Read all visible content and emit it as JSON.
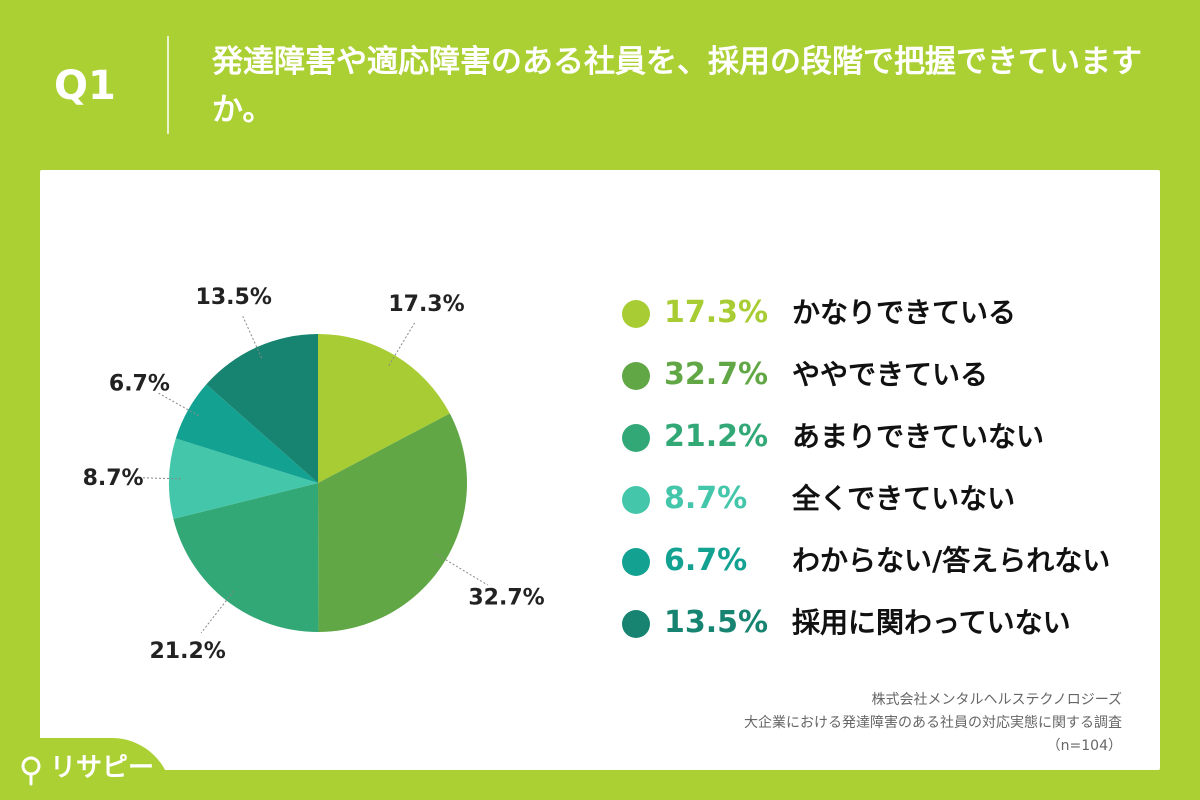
{
  "header": {
    "q_label": "Q1",
    "question": "発達障害や適応障害のある社員を、採用の段階で把握できていますか。"
  },
  "chart_data": {
    "type": "pie",
    "categories": [
      "かなりできている",
      "ややできている",
      "あまりできていない",
      "全くできていない",
      "わからない/答えられない",
      "採用に関わっていない"
    ],
    "values": [
      17.3,
      32.7,
      21.2,
      8.7,
      6.7,
      13.5
    ],
    "value_labels": [
      "17.3%",
      "32.7%",
      "21.2%",
      "8.7%",
      "6.7%",
      "13.5%"
    ],
    "colors": [
      "#a8cc33",
      "#61a745",
      "#33a877",
      "#43c6aa",
      "#13a292",
      "#168470"
    ],
    "legend_position": "right",
    "start_angle": "12 o'clock, clockwise"
  },
  "legend": [
    {
      "pct": "17.3%",
      "label": "かなりできている",
      "color": "#a8cc33"
    },
    {
      "pct": "32.7%",
      "label": "ややできている",
      "color": "#61a745"
    },
    {
      "pct": "21.2%",
      "label": "あまりできていない",
      "color": "#33a877"
    },
    {
      "pct": "8.7%",
      "label": "全くできていない",
      "color": "#43c6aa"
    },
    {
      "pct": "6.7%",
      "label": "わからない/答えられない",
      "color": "#13a292"
    },
    {
      "pct": "13.5%",
      "label": "採用に関わっていない",
      "color": "#168470"
    }
  ],
  "source": {
    "line1": "株式会社メンタルヘルステクノロジーズ",
    "line2": "大企業における発達障害のある社員の対応実態に関する調査",
    "line3": "（n=104）"
  },
  "logo": {
    "text": "リサピー"
  }
}
